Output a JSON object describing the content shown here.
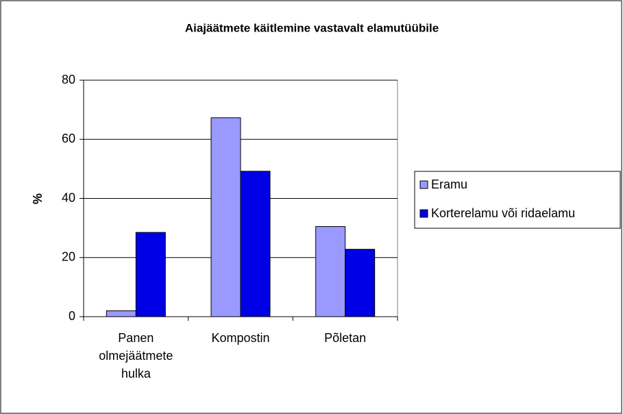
{
  "chart_data": {
    "type": "bar",
    "title": "Aiajäätmete käitlemine vastavalt elamutüübile",
    "y_label": "%",
    "categories": [
      "Panen olmejäätmete hulka",
      "Kompostin",
      "Põletan"
    ],
    "series": [
      {
        "name": "Eramu",
        "color": "#9999ff",
        "values": [
          2,
          67.3,
          30.5
        ]
      },
      {
        "name": "Korterelamu või ridaelamu",
        "color": "#0000e6",
        "values": [
          28.5,
          49.2,
          22.8
        ]
      }
    ],
    "ylim": [
      0,
      80
    ],
    "yticks": [
      0,
      20,
      40,
      60,
      80
    ],
    "grid": true
  }
}
